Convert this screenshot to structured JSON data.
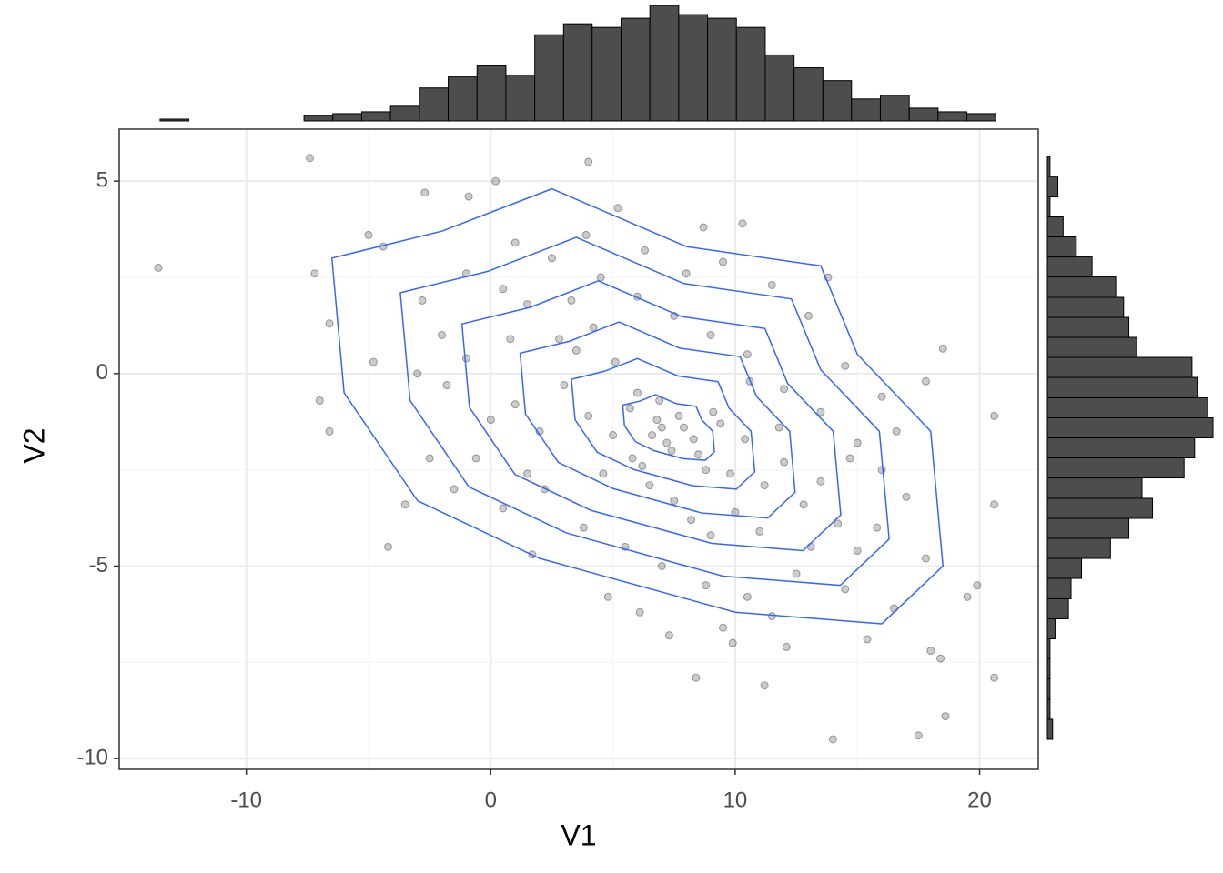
{
  "chart_data": [
    {
      "type": "scatter",
      "x_label": "V1",
      "y_label": "V2",
      "xlim": [
        -15.2,
        22.4
      ],
      "ylim": [
        -10.28,
        6.35
      ],
      "xticks": [
        -10,
        0,
        10,
        20
      ],
      "yticks": [
        -10,
        -5,
        0,
        5
      ],
      "x_minor": [
        -5,
        5,
        15
      ],
      "y_minor": [
        -7.5,
        -2.5,
        2.5
      ],
      "grid": true,
      "point_color": "#000000",
      "contour_color": "#3366ff",
      "x": [
        -13.6,
        -7.4,
        20.6,
        20.6,
        20.6,
        14,
        17.5,
        18.6,
        8.4,
        11.2,
        -4.2,
        4,
        0.2,
        -2.7,
        -0.9,
        19.9,
        19.5,
        18.5,
        17.8,
        -6.6,
        -7,
        -6.6,
        -7.2,
        -5,
        -4.4,
        0.5,
        1.5,
        2.8,
        3.5,
        4.2,
        5.1,
        6.0,
        6.8,
        7.2,
        7.9,
        8.5,
        9.1,
        9.8,
        10.4,
        11.2,
        12.0,
        12.8,
        13.5,
        14.2,
        15.0,
        3.0,
        4.0,
        5.0,
        5.8,
        6.5,
        7.5,
        8.2,
        9.0,
        10.0,
        11.0,
        2.0,
        1.0,
        0.0,
        -1.0,
        -2.0,
        -3.0,
        -2.5,
        -1.5,
        0.5,
        1.5,
        4.5,
        6.0,
        7.5,
        9.0,
        10.5,
        12.0,
        13.5,
        15.0,
        16.0,
        17.0,
        3.8,
        5.5,
        7.0,
        8.8,
        10.5,
        12.5,
        14.5,
        16.5,
        11.5,
        9.5,
        6.3,
        8.0,
        9.5,
        11.5,
        13.0,
        14.5,
        16.0,
        2.5,
        1.0,
        -1.0,
        6.6,
        7.0,
        7.4,
        7.7,
        8.3,
        6.2,
        8.8,
        5.7,
        9.4,
        6.9,
        4.6,
        10.6,
        3.3,
        11.8,
        2.2,
        13.1,
        0.8,
        14.7,
        -0.6,
        15.8,
        5.2,
        8.7,
        12.1,
        7.3,
        4.8,
        17.8,
        -3.5,
        -4.8,
        18.0,
        18.4,
        -2.8,
        -1.8,
        3.9,
        10.3,
        13.8,
        16.6,
        1.7,
        6.1,
        15.4,
        9.9
      ],
      "y": [
        2.75,
        5.6,
        -1.1,
        -3.4,
        -7.9,
        -9.5,
        -9.4,
        -8.9,
        -7.9,
        -8.1,
        -4.5,
        5.5,
        5.0,
        4.7,
        4.6,
        -5.5,
        -5.8,
        0.65,
        -0.2,
        -1.5,
        -0.7,
        1.3,
        2.6,
        3.6,
        3.3,
        2.2,
        1.8,
        0.9,
        0.6,
        1.2,
        0.3,
        -0.5,
        -1.2,
        -1.8,
        -1.4,
        -2.1,
        -1.0,
        -2.6,
        -1.7,
        -2.9,
        -2.3,
        -3.4,
        -2.8,
        -3.9,
        -4.6,
        -0.3,
        -1.1,
        -1.6,
        -2.2,
        -2.9,
        -3.3,
        -3.8,
        -4.2,
        -3.6,
        -4.1,
        -1.5,
        -0.8,
        -1.2,
        0.4,
        1.0,
        0.0,
        -2.2,
        -3.0,
        -3.5,
        -2.6,
        2.5,
        2.0,
        1.5,
        1.0,
        0.5,
        -0.4,
        -1.0,
        -1.8,
        -2.5,
        -3.2,
        -4.0,
        -4.5,
        -5.0,
        -5.5,
        -5.8,
        -5.2,
        -5.6,
        -6.1,
        -6.3,
        -6.6,
        3.2,
        2.6,
        2.9,
        2.3,
        1.5,
        0.2,
        -0.6,
        3.0,
        3.4,
        2.6,
        -1.6,
        -1.4,
        -2.0,
        -1.1,
        -1.7,
        -2.4,
        -2.5,
        -0.9,
        -1.3,
        -0.7,
        -2.6,
        -0.2,
        1.9,
        -1.4,
        -3.0,
        -4.5,
        0.9,
        -2.2,
        -2.2,
        -4.0,
        4.3,
        3.8,
        -7.1,
        -6.8,
        -5.8,
        -4.8,
        -3.4,
        0.3,
        -7.2,
        -7.4,
        1.9,
        -0.3,
        3.6,
        3.9,
        2.5,
        -1.5,
        -4.7,
        -6.2,
        -6.9,
        -7.0
      ],
      "contours": [
        {
          "x": [
            -6.5,
            -2,
            2.5,
            8,
            13.5,
            15,
            18,
            18.5,
            16,
            10,
            2,
            -3,
            -6
          ],
          "y": [
            3.0,
            3.7,
            4.8,
            3.3,
            2.8,
            0.5,
            -1.5,
            -5,
            -6.5,
            -6.2,
            -4.8,
            -3.3,
            -0.5
          ]
        },
        {
          "x": [
            -3.7,
            -0.1,
            3.5,
            7.9,
            12.3,
            13.5,
            15.9,
            16.3,
            14.3,
            9.5,
            3.1,
            -0.9,
            -3.3
          ],
          "y": [
            2.1,
            2.66,
            3.54,
            2.34,
            1.94,
            0.1,
            -1.5,
            -4.3,
            -5.5,
            -5.26,
            -4.14,
            -2.94,
            -0.7
          ]
        },
        {
          "x": [
            -1.18,
            1.61,
            4.4,
            7.81,
            11.22,
            12.15,
            14.01,
            14.32,
            12.77,
            9.05,
            4.09,
            0.99,
            -0.87
          ],
          "y": [
            1.29,
            1.72,
            2.41,
            1.48,
            1.17,
            -0.26,
            -1.5,
            -3.67,
            -4.6,
            -4.41,
            -3.55,
            -2.62,
            -0.88
          ]
        },
        {
          "x": [
            1.2,
            3.22,
            5.25,
            7.73,
            10.2,
            10.88,
            12.23,
            12.45,
            11.33,
            8.63,
            5.02,
            2.77,
            1.42
          ],
          "y": [
            0.53,
            0.84,
            1.34,
            0.66,
            0.44,
            -0.6,
            -1.5,
            -3.08,
            -3.75,
            -3.62,
            -2.99,
            -2.31,
            -1.05
          ]
        },
        {
          "x": [
            3.3,
            4.65,
            6,
            7.65,
            9.3,
            9.75,
            10.65,
            10.8,
            10.05,
            8.25,
            5.85,
            4.35,
            3.45
          ],
          "y": [
            -0.15,
            0.06,
            0.39,
            -0.06,
            -0.21,
            -0.9,
            -1.5,
            -2.55,
            -3,
            -2.91,
            -2.49,
            -2.04,
            -1.2
          ]
        },
        {
          "x": [
            5.4,
            6.07,
            6.75,
            7.58,
            8.4,
            8.63,
            9.08,
            9.15,
            8.78,
            7.88,
            6.67,
            5.92,
            5.47
          ],
          "y": [
            -0.82,
            -0.72,
            -0.55,
            -0.78,
            -0.85,
            -1.2,
            -1.5,
            -2.03,
            -2.25,
            -2.21,
            -2.0,
            -1.77,
            -1.35
          ]
        }
      ]
    },
    {
      "type": "histogram",
      "orientation": "vertical",
      "color": "#4d4d4d",
      "bins": [
        -13.53,
        -12.35,
        -11.17,
        -9.99,
        -8.81,
        -7.64,
        -6.46,
        -5.28,
        -4.1,
        -2.92,
        -1.74,
        -0.56,
        0.62,
        1.8,
        2.98,
        4.15,
        5.33,
        6.51,
        7.69,
        8.87,
        10.05,
        11.23,
        12.41,
        13.59,
        14.76,
        15.94,
        17.12,
        18.3,
        19.48,
        20.66
      ],
      "values": [
        1,
        0,
        0,
        0,
        0,
        3,
        4,
        5,
        8,
        18,
        24,
        30,
        25,
        47,
        53,
        51,
        56,
        63,
        58,
        56,
        51,
        36,
        29,
        22,
        12,
        14,
        7,
        5,
        4
      ]
    },
    {
      "type": "histogram",
      "orientation": "horizontal",
      "color": "#4d4d4d",
      "bins": [
        -9.5,
        -8.98,
        -8.46,
        -7.93,
        -7.41,
        -6.89,
        -6.37,
        -5.85,
        -5.32,
        -4.8,
        -4.28,
        -3.76,
        -3.24,
        -2.71,
        -2.19,
        -1.67,
        -1.15,
        -0.63,
        -0.1,
        0.42,
        0.94,
        1.46,
        1.98,
        2.51,
        3.03,
        3.55,
        4.07,
        4.59,
        5.12,
        5.64
      ],
      "values": [
        2,
        1,
        1,
        1,
        1,
        3,
        8,
        9,
        13,
        24,
        31,
        40,
        36,
        52,
        56,
        63,
        61,
        57,
        55,
        34,
        31,
        29,
        26,
        17,
        11,
        6,
        1,
        4,
        1
      ]
    }
  ]
}
